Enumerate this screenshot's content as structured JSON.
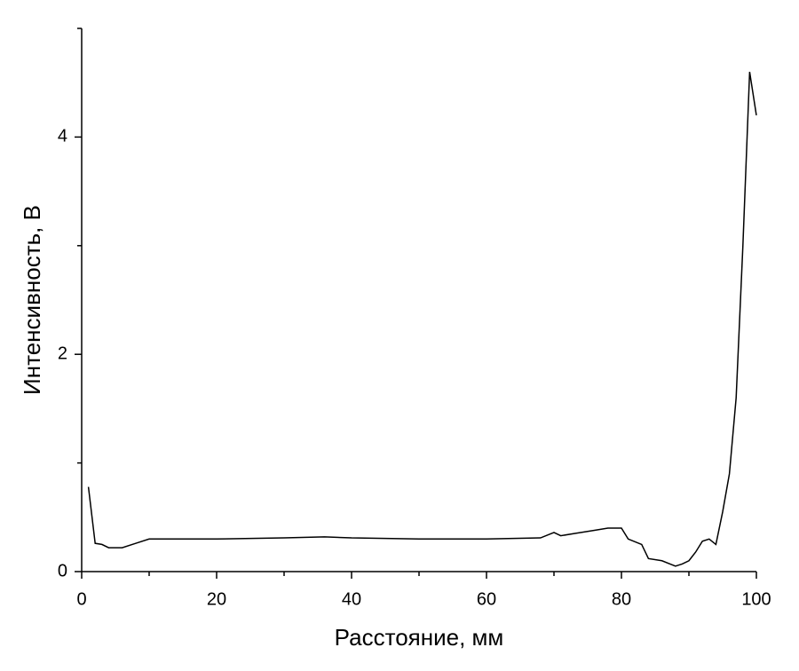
{
  "chart_data": {
    "type": "line",
    "x_label": "Расстояние, мм",
    "y_label": "Интенсивность, В",
    "series": [
      {
        "color": "#000000",
        "x": [
          1,
          2,
          3,
          4,
          6,
          8,
          10,
          20,
          30,
          36,
          40,
          50,
          60,
          68,
          70,
          71,
          73,
          76,
          78,
          80,
          81,
          83,
          84,
          86,
          88,
          89,
          90,
          91,
          92,
          93,
          94,
          95,
          96,
          97,
          98,
          99,
          100
        ],
        "values": [
          0.78,
          0.26,
          0.25,
          0.22,
          0.22,
          0.26,
          0.3,
          0.3,
          0.31,
          0.32,
          0.31,
          0.3,
          0.3,
          0.31,
          0.36,
          0.33,
          0.35,
          0.38,
          0.4,
          0.4,
          0.3,
          0.25,
          0.12,
          0.1,
          0.05,
          0.07,
          0.1,
          0.18,
          0.28,
          0.3,
          0.25,
          0.55,
          0.9,
          1.6,
          3.0,
          4.6,
          4.2
        ]
      }
    ],
    "xlim": [
      0,
      100
    ],
    "xticks": [
      0,
      20,
      40,
      60,
      80,
      100
    ],
    "xminorticks": [
      10,
      30,
      50,
      70,
      90
    ],
    "ylim": [
      0,
      5
    ],
    "yticks": [
      0,
      2,
      4
    ],
    "yminorticks": [
      1,
      3,
      5
    ]
  }
}
